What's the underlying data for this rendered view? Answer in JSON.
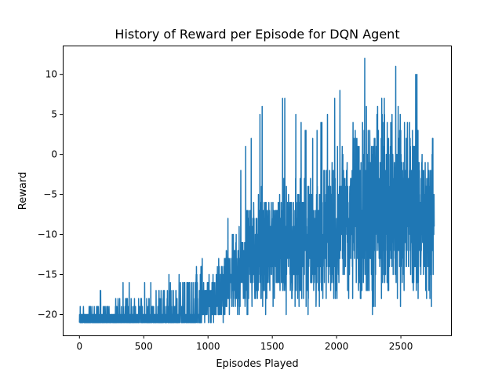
{
  "chart_data": {
    "type": "line",
    "title": "History of Reward per Episode for DQN Agent",
    "xlabel": "Episodes Played",
    "ylabel": "Reward",
    "xlim": [
      -130,
      2890
    ],
    "ylim": [
      -22.6,
      13.6
    ],
    "xticks": [
      0,
      500,
      1000,
      1500,
      2000,
      2500
    ],
    "yticks": [
      -20,
      -15,
      -10,
      -5,
      0,
      5,
      10
    ],
    "grid": false,
    "line_color": "#1f77b4",
    "n_episodes": 2760,
    "series": [
      {
        "trend_keypoints": [
          {
            "x": 0,
            "mean": -20.8,
            "amp": 0.6,
            "max": -17
          },
          {
            "x": 500,
            "mean": -20.3,
            "amp": 1.0,
            "max": -16
          },
          {
            "x": 900,
            "mean": -19.5,
            "amp": 1.6,
            "max": -14
          },
          {
            "x": 1100,
            "mean": -17.0,
            "amp": 3.0,
            "max": -12
          },
          {
            "x": 1300,
            "mean": -13.0,
            "amp": 4.5,
            "max": 1
          },
          {
            "x": 1500,
            "mean": -11.0,
            "amp": 5.5,
            "max": 9
          },
          {
            "x": 1800,
            "mean": -11.0,
            "amp": 6.0,
            "max": 2
          },
          {
            "x": 2000,
            "mean": -9.5,
            "amp": 7.0,
            "max": 7
          },
          {
            "x": 2200,
            "mean": -6.5,
            "amp": 8.5,
            "max": 12
          },
          {
            "x": 2400,
            "mean": -6.0,
            "amp": 9.0,
            "max": 12
          },
          {
            "x": 2600,
            "mean": -8.0,
            "amp": 8.0,
            "max": 10
          },
          {
            "x": 2760,
            "mean": -9.0,
            "amp": 7.0,
            "max": 7
          }
        ]
      }
    ]
  }
}
